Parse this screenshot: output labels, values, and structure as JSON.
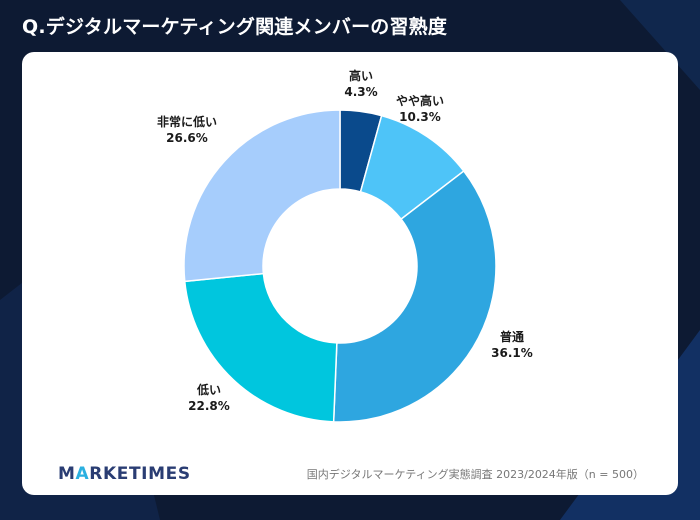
{
  "title": "Q.デジタルマーケティング関連メンバーの習熟度",
  "brand": {
    "prefix": "M",
    "accent": "A",
    "suffix": "RKETIMES"
  },
  "source": "国内デジタルマーケティング実態調査 2023/2024年版（n = 500）",
  "chart_data": {
    "type": "pie",
    "donut": true,
    "title": "Q.デジタルマーケティング関連メンバーの習熟度",
    "categories": [
      "高い",
      "やや高い",
      "普通",
      "低い",
      "非常に低い"
    ],
    "values": [
      4.3,
      10.3,
      36.1,
      22.8,
      26.6
    ],
    "labels": [
      "4.3%",
      "10.3%",
      "36.1%",
      "22.8%",
      "26.6%"
    ],
    "colors": [
      "#0a4a8c",
      "#4ec4f8",
      "#2ea6e0",
      "#00c6de",
      "#a6cdfc"
    ]
  }
}
